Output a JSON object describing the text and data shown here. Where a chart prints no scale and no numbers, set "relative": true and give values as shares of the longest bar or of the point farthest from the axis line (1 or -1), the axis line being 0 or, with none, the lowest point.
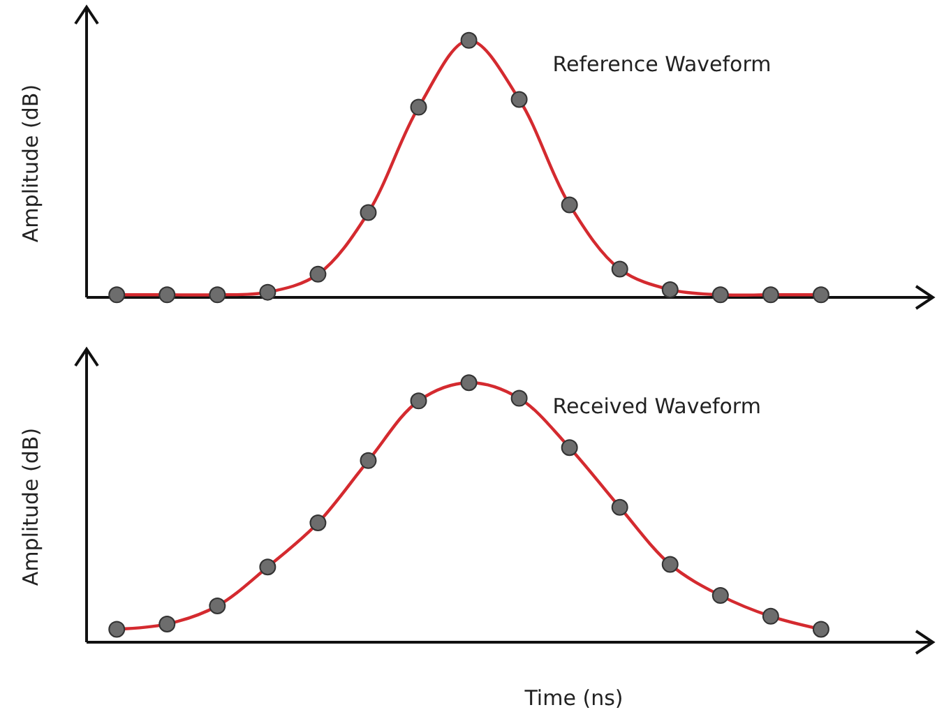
{
  "chart_data": [
    {
      "type": "line",
      "ylabel": "Amplitude (dB)",
      "relative": true,
      "marker": "circle",
      "categories": [
        null,
        null,
        null,
        null,
        null,
        null,
        null,
        null,
        null,
        null,
        null,
        null,
        null,
        null,
        null
      ],
      "series": [
        {
          "name": "Reference Waveform",
          "color": "#d42a2f",
          "values": [
            0.01,
            0.01,
            0.01,
            0.02,
            0.09,
            0.33,
            0.74,
            1,
            0.77,
            0.36,
            0.11,
            0.03,
            0.01,
            0.01,
            0.01
          ]
        }
      ]
    },
    {
      "type": "line",
      "ylabel": "Amplitude (dB)",
      "xlabel": "Time (ns)",
      "relative": true,
      "marker": "circle",
      "categories": [
        null,
        null,
        null,
        null,
        null,
        null,
        null,
        null,
        null,
        null,
        null,
        null,
        null,
        null,
        null
      ],
      "series": [
        {
          "name": "Received Waveform",
          "color": "#d42a2f",
          "values": [
            0.05,
            0.07,
            0.14,
            0.29,
            0.46,
            0.7,
            0.93,
            1,
            0.94,
            0.75,
            0.52,
            0.3,
            0.18,
            0.1,
            0.05
          ]
        }
      ]
    }
  ]
}
